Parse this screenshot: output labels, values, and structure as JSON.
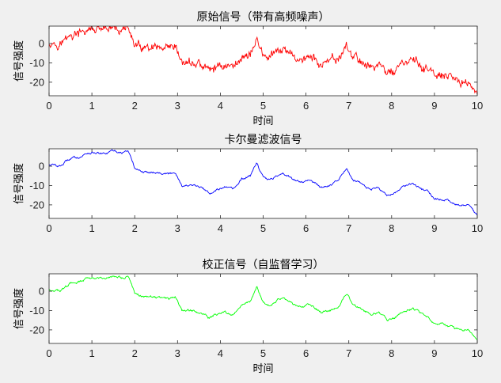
{
  "chart_data": [
    {
      "type": "line",
      "title": "原始信号（带有高频噪声）",
      "xlabel": "时间",
      "ylabel": "信号强度",
      "xlim": [
        0,
        10
      ],
      "ylim": [
        -27,
        9
      ],
      "xticks": [
        0,
        1,
        2,
        3,
        4,
        5,
        6,
        7,
        8,
        9,
        10
      ],
      "yticks": [
        0,
        -10,
        -20
      ],
      "grid": false,
      "noise": "high",
      "series": [
        {
          "color": "#ff0000",
          "x": [
            0,
            0.25,
            0.5,
            0.75,
            0.9,
            1.1,
            1.3,
            1.5,
            1.7,
            1.85,
            2.0,
            2.2,
            2.5,
            2.8,
            2.95,
            3.1,
            3.3,
            3.55,
            3.75,
            3.9,
            4.1,
            4.3,
            4.5,
            4.7,
            4.85,
            5.0,
            5.2,
            5.45,
            5.7,
            5.9,
            6.1,
            6.35,
            6.55,
            6.75,
            6.95,
            7.1,
            7.3,
            7.5,
            7.7,
            7.9,
            8.05,
            8.3,
            8.5,
            8.7,
            8.85,
            9.0,
            9.2,
            9.45,
            9.6,
            9.8,
            10.0
          ],
          "y": [
            1,
            0,
            4,
            5,
            7,
            7,
            6,
            8,
            7,
            8,
            -1,
            -3,
            -3,
            -4,
            -3,
            -10,
            -10,
            -11,
            -14,
            -12,
            -11,
            -12,
            -7,
            -5,
            2,
            -6,
            -7,
            -3,
            -7,
            -8,
            -7,
            -11,
            -10,
            -8,
            -1,
            -7,
            -9,
            -12,
            -11,
            -15,
            -14,
            -10,
            -9,
            -12,
            -13,
            -17,
            -17,
            -19,
            -20,
            -20,
            -26
          ]
        }
      ]
    },
    {
      "type": "line",
      "title": "卡尔曼滤波信号",
      "xlabel": "",
      "ylabel": "信号强度",
      "xlim": [
        0,
        10
      ],
      "ylim": [
        -27,
        9
      ],
      "xticks": [
        0,
        1,
        2,
        3,
        4,
        5,
        6,
        7,
        8,
        9,
        10
      ],
      "yticks": [
        0,
        -10,
        -20
      ],
      "grid": false,
      "noise": "low",
      "series": [
        {
          "color": "#0000ff",
          "x": [
            0,
            0.25,
            0.5,
            0.75,
            0.9,
            1.1,
            1.3,
            1.5,
            1.7,
            1.85,
            2.0,
            2.2,
            2.5,
            2.8,
            2.95,
            3.1,
            3.3,
            3.55,
            3.75,
            3.9,
            4.1,
            4.3,
            4.5,
            4.7,
            4.85,
            5.0,
            5.2,
            5.45,
            5.7,
            5.9,
            6.1,
            6.35,
            6.55,
            6.75,
            6.95,
            7.1,
            7.3,
            7.5,
            7.7,
            7.9,
            8.05,
            8.3,
            8.5,
            8.7,
            8.85,
            9.0,
            9.2,
            9.45,
            9.6,
            9.8,
            10.0
          ],
          "y": [
            1,
            0,
            4,
            5,
            7,
            7,
            6,
            8,
            7,
            8,
            -1,
            -3,
            -3,
            -4,
            -3,
            -10,
            -10,
            -11,
            -14,
            -12,
            -11,
            -12,
            -7,
            -5,
            2,
            -6,
            -7,
            -3,
            -7,
            -8,
            -7,
            -11,
            -10,
            -8,
            -1,
            -7,
            -9,
            -12,
            -11,
            -15,
            -14,
            -10,
            -9,
            -12,
            -13,
            -17,
            -17,
            -19,
            -20,
            -20,
            -26
          ]
        }
      ]
    },
    {
      "type": "line",
      "title": "校正信号（自监督学习）",
      "xlabel": "时间",
      "ylabel": "信号强度",
      "xlim": [
        0,
        10
      ],
      "ylim": [
        -27,
        9
      ],
      "xticks": [
        0,
        1,
        2,
        3,
        4,
        5,
        6,
        7,
        8,
        9,
        10
      ],
      "yticks": [
        0,
        -10,
        -20
      ],
      "grid": false,
      "noise": "low",
      "series": [
        {
          "color": "#00ff00",
          "x": [
            0,
            0.25,
            0.5,
            0.75,
            0.9,
            1.1,
            1.3,
            1.5,
            1.7,
            1.85,
            2.0,
            2.2,
            2.5,
            2.8,
            2.95,
            3.1,
            3.3,
            3.55,
            3.75,
            3.9,
            4.1,
            4.3,
            4.5,
            4.7,
            4.85,
            5.0,
            5.2,
            5.45,
            5.7,
            5.9,
            6.1,
            6.35,
            6.55,
            6.75,
            6.95,
            7.1,
            7.3,
            7.5,
            7.7,
            7.9,
            8.05,
            8.3,
            8.5,
            8.7,
            8.85,
            9.0,
            9.2,
            9.45,
            9.6,
            9.8,
            10.0
          ],
          "y": [
            1,
            0,
            4,
            5,
            7,
            7,
            6,
            8,
            7,
            8,
            -1,
            -3,
            -3,
            -4,
            -3,
            -10,
            -10,
            -11,
            -14,
            -12,
            -11,
            -12,
            -7,
            -5,
            2,
            -6,
            -7,
            -3,
            -7,
            -8,
            -7,
            -11,
            -10,
            -8,
            -1,
            -7,
            -9,
            -12,
            -11,
            -15,
            -14,
            -10,
            -9,
            -12,
            -13,
            -17,
            -17,
            -19,
            -20,
            -20,
            -26
          ]
        }
      ]
    }
  ]
}
